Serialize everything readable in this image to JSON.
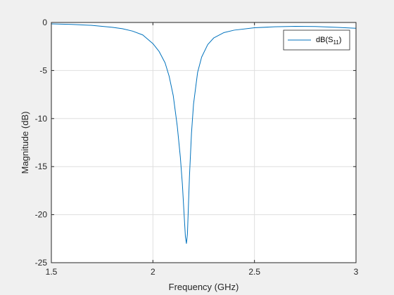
{
  "chart_data": {
    "type": "line",
    "title": "",
    "xlabel": "Frequency (GHz)",
    "ylabel": "Magnitude (dB)",
    "xlim": [
      1.5,
      3.0
    ],
    "ylim": [
      -25,
      0
    ],
    "xticks": [
      1.5,
      2.0,
      2.5,
      3.0
    ],
    "xtick_labels": [
      "1.5",
      "2",
      "2.5",
      "3"
    ],
    "yticks": [
      0,
      -5,
      -10,
      -15,
      -20,
      -25
    ],
    "ytick_labels": [
      "0",
      "-5",
      "-10",
      "-15",
      "-20",
      "-25"
    ],
    "grid": true,
    "legend_position": "top-right",
    "legend_label": "dB(S",
    "legend_subscript": "11",
    "legend_suffix": ")",
    "series": [
      {
        "color": "#0072bd",
        "x": [
          1.5,
          1.6,
          1.7,
          1.8,
          1.85,
          1.9,
          1.95,
          2.0,
          2.03,
          2.06,
          2.08,
          2.1,
          2.12,
          2.135,
          2.145,
          2.155,
          2.16,
          2.165,
          2.17,
          2.175,
          2.18,
          2.19,
          2.2,
          2.22,
          2.24,
          2.27,
          2.3,
          2.35,
          2.4,
          2.5,
          2.6,
          2.7,
          2.8,
          2.9,
          3.0
        ],
        "y": [
          -0.15,
          -0.2,
          -0.3,
          -0.5,
          -0.65,
          -0.9,
          -1.3,
          -2.2,
          -3.0,
          -4.2,
          -5.6,
          -7.6,
          -10.8,
          -14.0,
          -16.8,
          -20.5,
          -22.3,
          -23.0,
          -22.0,
          -19.0,
          -16.0,
          -11.5,
          -8.5,
          -5.2,
          -3.6,
          -2.3,
          -1.6,
          -1.05,
          -0.8,
          -0.55,
          -0.45,
          -0.4,
          -0.42,
          -0.5,
          -0.6
        ]
      }
    ]
  }
}
